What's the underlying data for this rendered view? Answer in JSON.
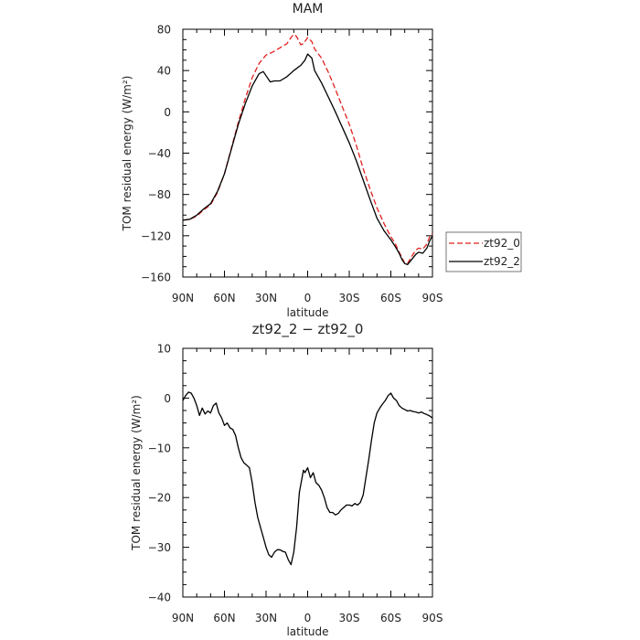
{
  "chart_data": [
    {
      "type": "line",
      "title": "MAM",
      "xlabel": "latitude",
      "ylabel": "TOM residual energy (W/m²)",
      "x_ticks": [
        "90N",
        "60N",
        "30N",
        "0",
        "30S",
        "60S",
        "90S"
      ],
      "x_tick_values": [
        90,
        60,
        30,
        0,
        -30,
        -60,
        -90
      ],
      "xlim": [
        90,
        -90
      ],
      "ylim": [
        -160,
        80
      ],
      "y_ticks": [
        "80",
        "40",
        "0",
        "−40",
        "−80",
        "−120",
        "−160"
      ],
      "y_tick_values": [
        80,
        40,
        0,
        -40,
        -80,
        -120,
        -160
      ],
      "legend": {
        "placement": "right",
        "entries": [
          "zt92_0",
          "zt92_2"
        ]
      },
      "series": [
        {
          "name": "zt92_0",
          "color": "#e0201e",
          "dash": "dashed",
          "x": [
            90,
            85,
            80,
            75,
            70,
            65,
            60,
            55,
            50,
            45,
            40,
            35,
            30,
            25,
            20,
            15,
            12,
            10,
            8,
            5,
            3,
            0,
            -3,
            -5,
            -10,
            -15,
            -20,
            -25,
            -30,
            -35,
            -40,
            -45,
            -50,
            -55,
            -60,
            -63,
            -66,
            -68,
            -70,
            -72,
            -75,
            -78,
            -80,
            -83,
            -86,
            -88,
            -90
          ],
          "y": [
            -105,
            -104,
            -101,
            -95,
            -90,
            -78,
            -60,
            -35,
            -10,
            13,
            33,
            47,
            55,
            58,
            62,
            66,
            72,
            75,
            73,
            65,
            66,
            72,
            68,
            61,
            52,
            38,
            22,
            5,
            -12,
            -32,
            -55,
            -75,
            -93,
            -108,
            -121,
            -127,
            -136,
            -141,
            -147,
            -147,
            -140,
            -134,
            -132,
            -133,
            -128,
            -121,
            -118
          ]
        },
        {
          "name": "zt92_2",
          "color": "#000000",
          "dash": "solid",
          "x": [
            90,
            85,
            80,
            75,
            70,
            65,
            60,
            55,
            50,
            45,
            40,
            35,
            32,
            30,
            27,
            24,
            20,
            15,
            10,
            5,
            2,
            0,
            -3,
            -5,
            -10,
            -15,
            -20,
            -25,
            -30,
            -35,
            -40,
            -45,
            -50,
            -55,
            -60,
            -63,
            -66,
            -68,
            -70,
            -72,
            -75,
            -78,
            -80,
            -83,
            -86,
            -88,
            -90
          ],
          "y": [
            -105,
            -104,
            -100,
            -94,
            -89,
            -77,
            -60,
            -36,
            -12,
            8,
            25,
            37,
            39,
            35,
            29,
            30,
            30,
            34,
            40,
            45,
            50,
            56,
            52,
            40,
            28,
            14,
            0,
            -15,
            -30,
            -47,
            -66,
            -85,
            -103,
            -115,
            -124,
            -130,
            -137,
            -143,
            -147,
            -148,
            -143,
            -138,
            -136,
            -137,
            -132,
            -125,
            -120
          ]
        }
      ]
    },
    {
      "type": "line",
      "title": "zt92_2 − zt92_0",
      "xlabel": "latitude",
      "ylabel": "TOM residual energy (W/m²)",
      "x_ticks": [
        "90N",
        "60N",
        "30N",
        "0",
        "30S",
        "60S",
        "90S"
      ],
      "x_tick_values": [
        90,
        60,
        30,
        0,
        -30,
        -60,
        -90
      ],
      "xlim": [
        90,
        -90
      ],
      "ylim": [
        -40,
        10
      ],
      "y_ticks": [
        "10",
        "0",
        "−10",
        "−20",
        "−30",
        "−40"
      ],
      "y_tick_values": [
        10,
        0,
        -10,
        -20,
        -30,
        -40
      ],
      "series": [
        {
          "name": "",
          "color": "#000000",
          "dash": "solid",
          "x": [
            90,
            88,
            86,
            84,
            82,
            80,
            78,
            76,
            74,
            72,
            70,
            68,
            66,
            64,
            62,
            60,
            58,
            56,
            54,
            52,
            50,
            48,
            46,
            44,
            42,
            40,
            38,
            36,
            34,
            32,
            30,
            28,
            26,
            24,
            22,
            20,
            18,
            16,
            14,
            12,
            10,
            8,
            6,
            4,
            3,
            2,
            0,
            -2,
            -4,
            -6,
            -8,
            -10,
            -12,
            -14,
            -16,
            -18,
            -20,
            -22,
            -24,
            -26,
            -28,
            -30,
            -32,
            -34,
            -36,
            -38,
            -40,
            -42,
            -44,
            -46,
            -48,
            -50,
            -52,
            -54,
            -56,
            -58,
            -60,
            -62,
            -64,
            -66,
            -68,
            -70,
            -72,
            -74,
            -76,
            -78,
            -80,
            -82,
            -84,
            -86,
            -88,
            -90
          ],
          "y": [
            -0.5,
            0.5,
            1.2,
            1,
            0,
            -1.5,
            -3.5,
            -2,
            -3.2,
            -2.6,
            -3,
            -1.5,
            -1,
            -3,
            -4,
            -5.5,
            -5,
            -6,
            -6.3,
            -7.5,
            -10,
            -12,
            -13,
            -13.5,
            -14,
            -17,
            -21,
            -24,
            -26,
            -28,
            -30,
            -31.5,
            -32,
            -31,
            -30.5,
            -30.5,
            -30.8,
            -31,
            -32.5,
            -33.5,
            -31,
            -26,
            -19,
            -16,
            -14.5,
            -15,
            -14,
            -16,
            -15,
            -17,
            -17.5,
            -18.5,
            -20,
            -22,
            -23,
            -23,
            -23.5,
            -23.2,
            -22.5,
            -22,
            -21.5,
            -21.5,
            -21.7,
            -21.2,
            -21.5,
            -21,
            -19.5,
            -16,
            -12.5,
            -8.5,
            -5,
            -3,
            -2,
            -1.2,
            -0.5,
            0.5,
            1,
            0,
            -0.5,
            -1.5,
            -2,
            -2.3,
            -2.6,
            -2.5,
            -2.7,
            -2.8,
            -3,
            -2.8,
            -3.1,
            -3.3,
            -3.6,
            -4
          ]
        }
      ]
    }
  ]
}
